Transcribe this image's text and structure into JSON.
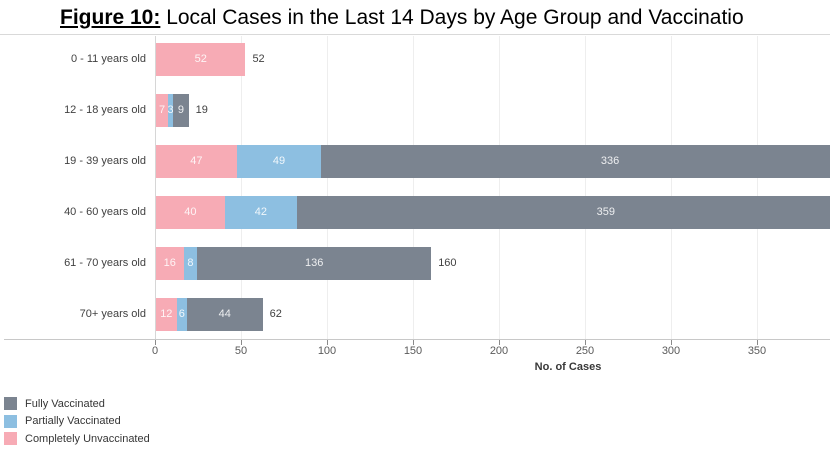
{
  "title": {
    "prefix": "Figure 10:",
    "text": " Local Cases in the Last 14 Days by Age Group and Vaccinatio"
  },
  "colors": {
    "fully_vaccinated": "#7b8490",
    "partially_vaccinated": "#8dbfe1",
    "completely_unvaccinated": "#f7abb5",
    "grid": "#eeeeee",
    "axis_line": "#c8c8c8",
    "separator": "#d9d9d9"
  },
  "chart_data": {
    "type": "bar",
    "orientation": "horizontal",
    "stacked": true,
    "grid": true,
    "categories": [
      "0 - 11 years old",
      "12 - 18 years old",
      "19 - 39 years old",
      "40 - 60 years old",
      "61 - 70 years old",
      "70+ years old"
    ],
    "series": [
      {
        "name": "Completely Unvaccinated",
        "color": "#f7abb5",
        "values": [
          52,
          7,
          47,
          40,
          16,
          12
        ]
      },
      {
        "name": "Partially Vaccinated",
        "color": "#8dbfe1",
        "values": [
          0,
          3,
          49,
          42,
          8,
          6
        ]
      },
      {
        "name": "Fully Vaccinated",
        "color": "#7b8490",
        "values": [
          0,
          9,
          336,
          359,
          136,
          44
        ]
      }
    ],
    "totals_visible": [
      "52",
      "19",
      null,
      null,
      "160",
      "62"
    ],
    "xlabel": "No. of Cases",
    "x_ticks": [
      0,
      50,
      100,
      150,
      200,
      250,
      300,
      350
    ],
    "xlim_visible": [
      0,
      393
    ],
    "legend_position": "bottom-left",
    "legend": [
      {
        "label": "Fully Vaccinated",
        "color": "#7b8490"
      },
      {
        "label": "Partially Vaccinated",
        "color": "#8dbfe1"
      },
      {
        "label": "Completely Unvaccinated",
        "color": "#f7abb5"
      }
    ]
  }
}
